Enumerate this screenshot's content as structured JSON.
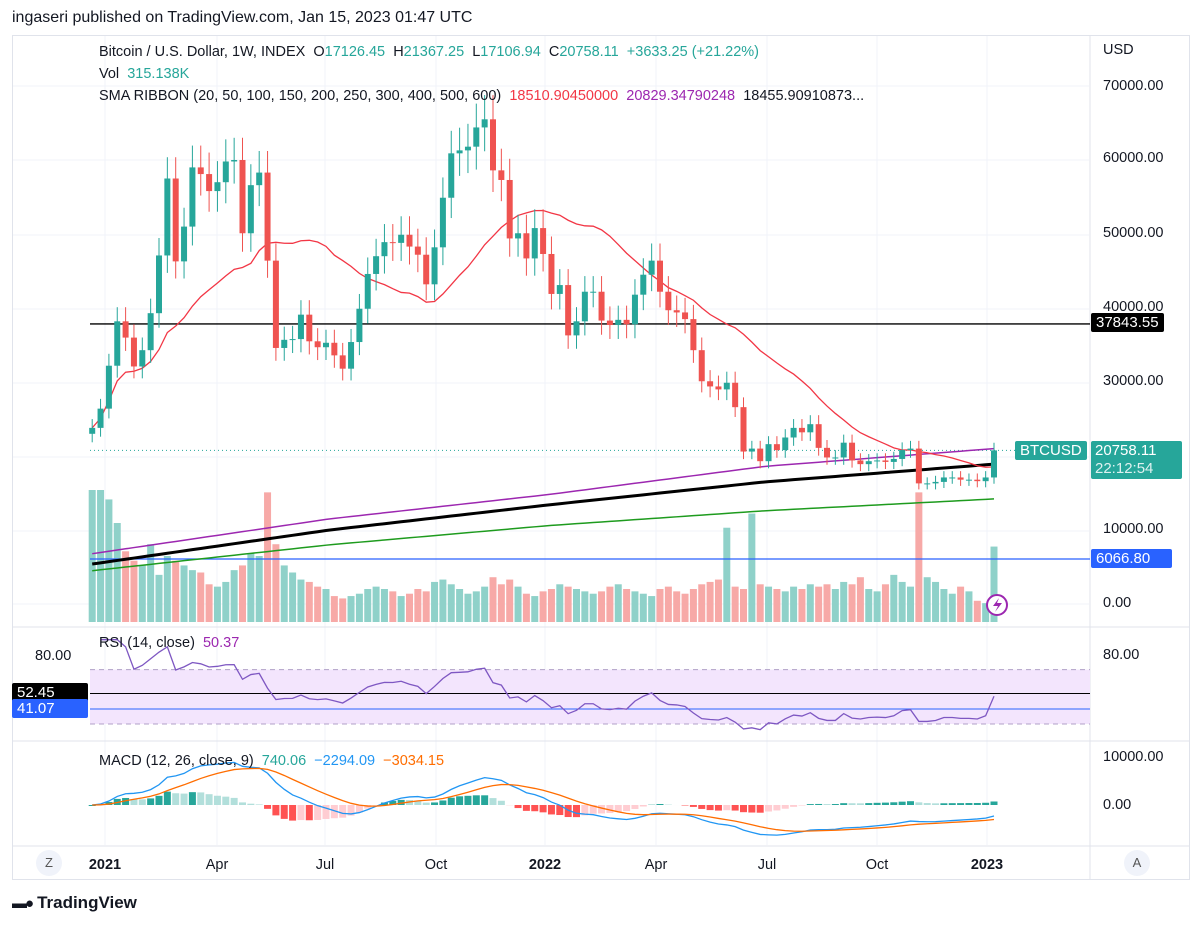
{
  "publisher_line": "ingaseri published on TradingView.com, Jan 15, 2023 01:47 UTC",
  "footer_brand": "TradingView",
  "legend": {
    "symbol": "Bitcoin / U.S. Dollar, 1W, INDEX",
    "o_label": "O",
    "o": "17126.45",
    "h_label": "H",
    "h": "21367.25",
    "l_label": "L",
    "l": "17106.94",
    "c_label": "C",
    "c": "20758.11",
    "change": "+3633.25 (+21.22%)",
    "vol_label": "Vol",
    "vol": "315.138K",
    "sma_label": "SMA RIBBON (20, 50, 100, 150, 200, 250, 300, 400, 500, 600)",
    "sma_v1": "18510.90450000",
    "sma_v2": "20829.34790248",
    "sma_v3": "18455.90910873..."
  },
  "rsi_legend": {
    "label": "RSI (14, close)",
    "value": "50.37"
  },
  "macd_legend": {
    "label": "MACD (12, 26, close, 9)",
    "v1": "740.06",
    "v2": "−2294.09",
    "v3": "−3034.15"
  },
  "price_axis": {
    "currency": "USD",
    "ticks": [
      "70000.00",
      "60000.00",
      "50000.00",
      "40000.00",
      "30000.00",
      "10000.00",
      "0.00"
    ]
  },
  "rsi_axis": {
    "ticks": [
      "80.00"
    ],
    "tag1": "52.45",
    "tag2": "41.07"
  },
  "macd_axis": {
    "ticks": [
      "10000.00",
      "0.00"
    ]
  },
  "tags": {
    "hline": "37843.55",
    "symbol": "BTCUSD",
    "last_price": "20758.11",
    "countdown": "22:12:54",
    "blue_line": "6066.80"
  },
  "x_axis": {
    "labels": [
      "2021",
      "Apr",
      "Jul",
      "Oct",
      "2022",
      "Apr",
      "Jul",
      "Oct",
      "2023"
    ],
    "bold": [
      true,
      false,
      false,
      false,
      true,
      false,
      false,
      false,
      true
    ]
  },
  "buttons": {
    "z": "Z",
    "a": "A"
  },
  "colors": {
    "up": "#26a69a",
    "down": "#ef5350",
    "vol_up": "#8fd1c9",
    "vol_down": "#f7a9a7",
    "sma20": "#f23645",
    "sma_purple": "#9c27b0",
    "sma_black": "#000000",
    "sma_green": "#1e9b1e",
    "rsi": "#7e57c2",
    "macd": "#2196f3",
    "signal": "#ff6d00",
    "blue_line": "#2962ff"
  },
  "chart_data": {
    "type": "candlestick",
    "timeframe": "1W",
    "x_range": [
      "2020-12-14",
      "2023-01-09"
    ],
    "first_open_k": 23.0,
    "closes_k": [
      23.8,
      26.4,
      32.2,
      38.2,
      36.0,
      32.1,
      34.3,
      39.3,
      47.1,
      57.5,
      46.3,
      51.0,
      59.0,
      58.1,
      55.8,
      57.0,
      59.8,
      60.0,
      50.1,
      56.6,
      58.3,
      46.4,
      34.6,
      35.7,
      35.8,
      39.1,
      35.5,
      34.7,
      35.3,
      33.6,
      31.8,
      35.4,
      39.9,
      44.6,
      47.0,
      48.9,
      48.8,
      49.9,
      48.3,
      47.2,
      43.2,
      48.2,
      54.9,
      60.9,
      61.3,
      61.8,
      64.4,
      65.5,
      58.6,
      57.3,
      49.4,
      50.1,
      46.7,
      50.8,
      47.3,
      41.9,
      43.1,
      36.3,
      38.2,
      42.2,
      42.2,
      38.3,
      37.7,
      38.4,
      37.8,
      41.8,
      44.5,
      46.4,
      42.2,
      39.7,
      39.4,
      38.5,
      34.3,
      30.1,
      29.4,
      29.0,
      29.9,
      26.6,
      20.6,
      21.0,
      19.3,
      21.6,
      20.8,
      22.5,
      23.8,
      23.2,
      24.3,
      21.1,
      19.8,
      19.8,
      21.8,
      19.4,
      18.9,
      19.3,
      19.4,
      19.2,
      19.6,
      20.8,
      21.0,
      16.3,
      16.3,
      16.5,
      17.1,
      17.1,
      16.8,
      16.8,
      16.6,
      17.1,
      20.76
    ],
    "volume_k": [
      560,
      560,
      520,
      420,
      300,
      260,
      240,
      330,
      200,
      280,
      260,
      240,
      220,
      210,
      160,
      150,
      170,
      220,
      240,
      290,
      280,
      550,
      330,
      240,
      210,
      180,
      170,
      150,
      140,
      110,
      100,
      110,
      120,
      140,
      150,
      140,
      130,
      110,
      120,
      140,
      130,
      170,
      180,
      160,
      140,
      120,
      130,
      150,
      190,
      160,
      180,
      150,
      120,
      110,
      130,
      140,
      160,
      150,
      140,
      130,
      120,
      130,
      150,
      160,
      140,
      130,
      120,
      110,
      140,
      150,
      130,
      120,
      140,
      160,
      170,
      180,
      400,
      150,
      140,
      460,
      160,
      150,
      140,
      130,
      150,
      140,
      160,
      150,
      160,
      140,
      170,
      160,
      190,
      140,
      130,
      160,
      200,
      170,
      150,
      550,
      190,
      170,
      140,
      120,
      150,
      130,
      90,
      80,
      320
    ],
    "sma_long_k": {
      "dates": [
        "2020-12-14",
        "2021-07-01",
        "2022-01-01",
        "2022-07-01",
        "2023-01-09"
      ],
      "purple": [
        6.8,
        11.5,
        14.8,
        18.6,
        21.0
      ],
      "black": [
        5.4,
        10.0,
        13.4,
        16.5,
        18.9
      ],
      "green": [
        4.5,
        8.0,
        10.6,
        12.6,
        14.2
      ]
    },
    "hlines": {
      "price": 37843.55,
      "blue": 6066.8
    },
    "rsi_period": 14,
    "rsi_band": [
      30,
      70
    ],
    "rsi_hlines": [
      52.45,
      41.07
    ],
    "macd_params": [
      12,
      26,
      9
    ],
    "y_range": [
      0,
      70000
    ]
  }
}
